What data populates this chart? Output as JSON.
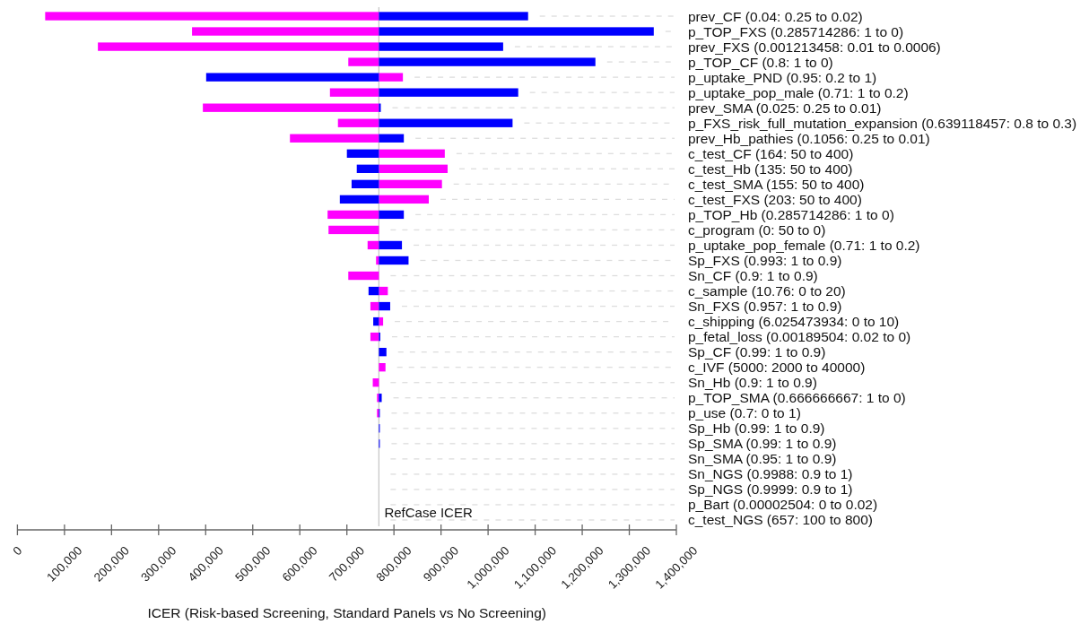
{
  "chart_data": {
    "type": "bar",
    "orientation": "horizontal",
    "xlabel": "ICER (Risk-based Screening, Standard Panels vs No Screening)",
    "categories": [
      "prev_CF (0.04: 0.25 to 0.02)",
      "p_TOP_FXS (0.285714286: 1 to 0)",
      "prev_FXS (0.001213458: 0.01 to 0.0006)",
      "p_TOP_CF (0.8: 1 to 0)",
      "p_uptake_PND (0.95: 0.2 to 1)",
      "p_uptake_pop_male (0.71: 1 to 0.2)",
      "prev_SMA (0.025: 0.25 to 0.01)",
      "p_FXS_risk_full_mutation_expansion (0.639118457: 0.8 to 0.3)",
      "prev_Hb_pathies (0.1056: 0.25 to 0.01)",
      "c_test_CF (164: 50 to 400)",
      "c_test_Hb (135: 50 to 400)",
      "c_test_SMA (155: 50 to 400)",
      "c_test_FXS (203: 50 to 400)",
      "p_TOP_Hb (0.285714286: 1 to 0)",
      "c_program (0: 50 to 0)",
      "p_uptake_pop_female (0.71: 1 to 0.2)",
      "Sp_FXS (0.993: 1 to 0.9)",
      "Sn_CF (0.9: 1 to 0.9)",
      "c_sample (10.76: 0 to 20)",
      "Sn_FXS (0.957: 1 to 0.9)",
      "c_shipping (6.025473934: 0 to 10)",
      "p_fetal_loss (0.00189504: 0.02 to 0)",
      "Sp_CF (0.99: 1 to 0.9)",
      "c_IVF (5000: 2000 to 40000)",
      "Sn_Hb (0.9: 1 to 0.9)",
      "p_TOP_SMA (0.666666667: 1 to 0)",
      "p_use (0.7: 0 to 1)",
      "Sp_Hb (0.99: 1 to 0.9)",
      "Sp_SMA (0.99: 1 to 0.9)",
      "Sn_SMA (0.95: 1 to 0.9)",
      "Sn_NGS (0.9988: 0.9 to 1)",
      "Sp_NGS (0.9999: 0.9 to 1)",
      "p_Bart (0.00002504: 0 to 0.02)",
      "c_test_NGS (657: 100 to 800)"
    ],
    "xlim": [
      0,
      1400000
    ],
    "xticks": [
      0,
      {
        "value": 100000,
        "label": "100,000"
      },
      {
        "value": 200000,
        "label": "200,000"
      },
      {
        "value": 300000,
        "label": "300,000"
      },
      {
        "value": 400000,
        "label": "400,000"
      },
      {
        "value": 500000,
        "label": "500,000"
      },
      {
        "value": 600000,
        "label": "600,000"
      },
      {
        "value": 700000,
        "label": "700,000"
      },
      {
        "value": 800000,
        "label": "800,000"
      },
      {
        "value": 900000,
        "label": "900,000"
      },
      {
        "value": 1000000,
        "label": "1,000,000"
      },
      {
        "value": 1100000,
        "label": "1,100,000"
      },
      {
        "value": 1200000,
        "label": "1,200,000"
      },
      {
        "value": 1300000,
        "label": "1,300,000"
      },
      {
        "value": 1400000,
        "label": "1,400,000"
      }
    ],
    "ref_lines": [
      {
        "axis": "x",
        "value": 768000,
        "label": "RefCase ICER",
        "color": "#c8c8c8"
      }
    ],
    "series": [
      {
        "color": "#ff00ff",
        "base": [
          768000,
          768000,
          768000,
          768000,
          768000,
          768000,
          768000,
          768000,
          768000,
          768000,
          768000,
          768000,
          768000,
          768000,
          768000,
          768000,
          768000,
          768000,
          768000,
          768000,
          768000,
          768000,
          null,
          768000,
          768000,
          768000,
          768000,
          null,
          null,
          null,
          null,
          null,
          null,
          null
        ],
        "values": [
          -709000,
          -397000,
          -597000,
          -65000,
          51000,
          -104000,
          -374000,
          -87000,
          -189000,
          140000,
          146000,
          134000,
          106000,
          -109000,
          -107000,
          -24000,
          -6000,
          -65000,
          19000,
          -18000,
          9000,
          -18000,
          null,
          14000,
          -13000,
          -4000,
          -4000,
          null,
          null,
          null,
          null,
          null,
          null,
          null
        ]
      },
      {
        "color": "#0000ff",
        "base": [
          768000,
          768000,
          768000,
          768000,
          768000,
          768000,
          768000,
          768000,
          768000,
          768000,
          768000,
          768000,
          768000,
          768000,
          null,
          768000,
          768000,
          null,
          768000,
          768000,
          768000,
          768000,
          768000,
          null,
          null,
          768000,
          768000,
          768000,
          768000,
          null,
          null,
          null,
          null,
          null
        ],
        "values": [
          317000,
          584000,
          264000,
          460000,
          -367000,
          296000,
          4000,
          284000,
          53000,
          -68000,
          -47000,
          -58000,
          -83000,
          53000,
          null,
          49000,
          63000,
          null,
          -22000,
          24000,
          -12000,
          3000,
          16000,
          null,
          null,
          6000,
          2000,
          2000,
          2000,
          null,
          null,
          null,
          null,
          null
        ]
      }
    ]
  }
}
